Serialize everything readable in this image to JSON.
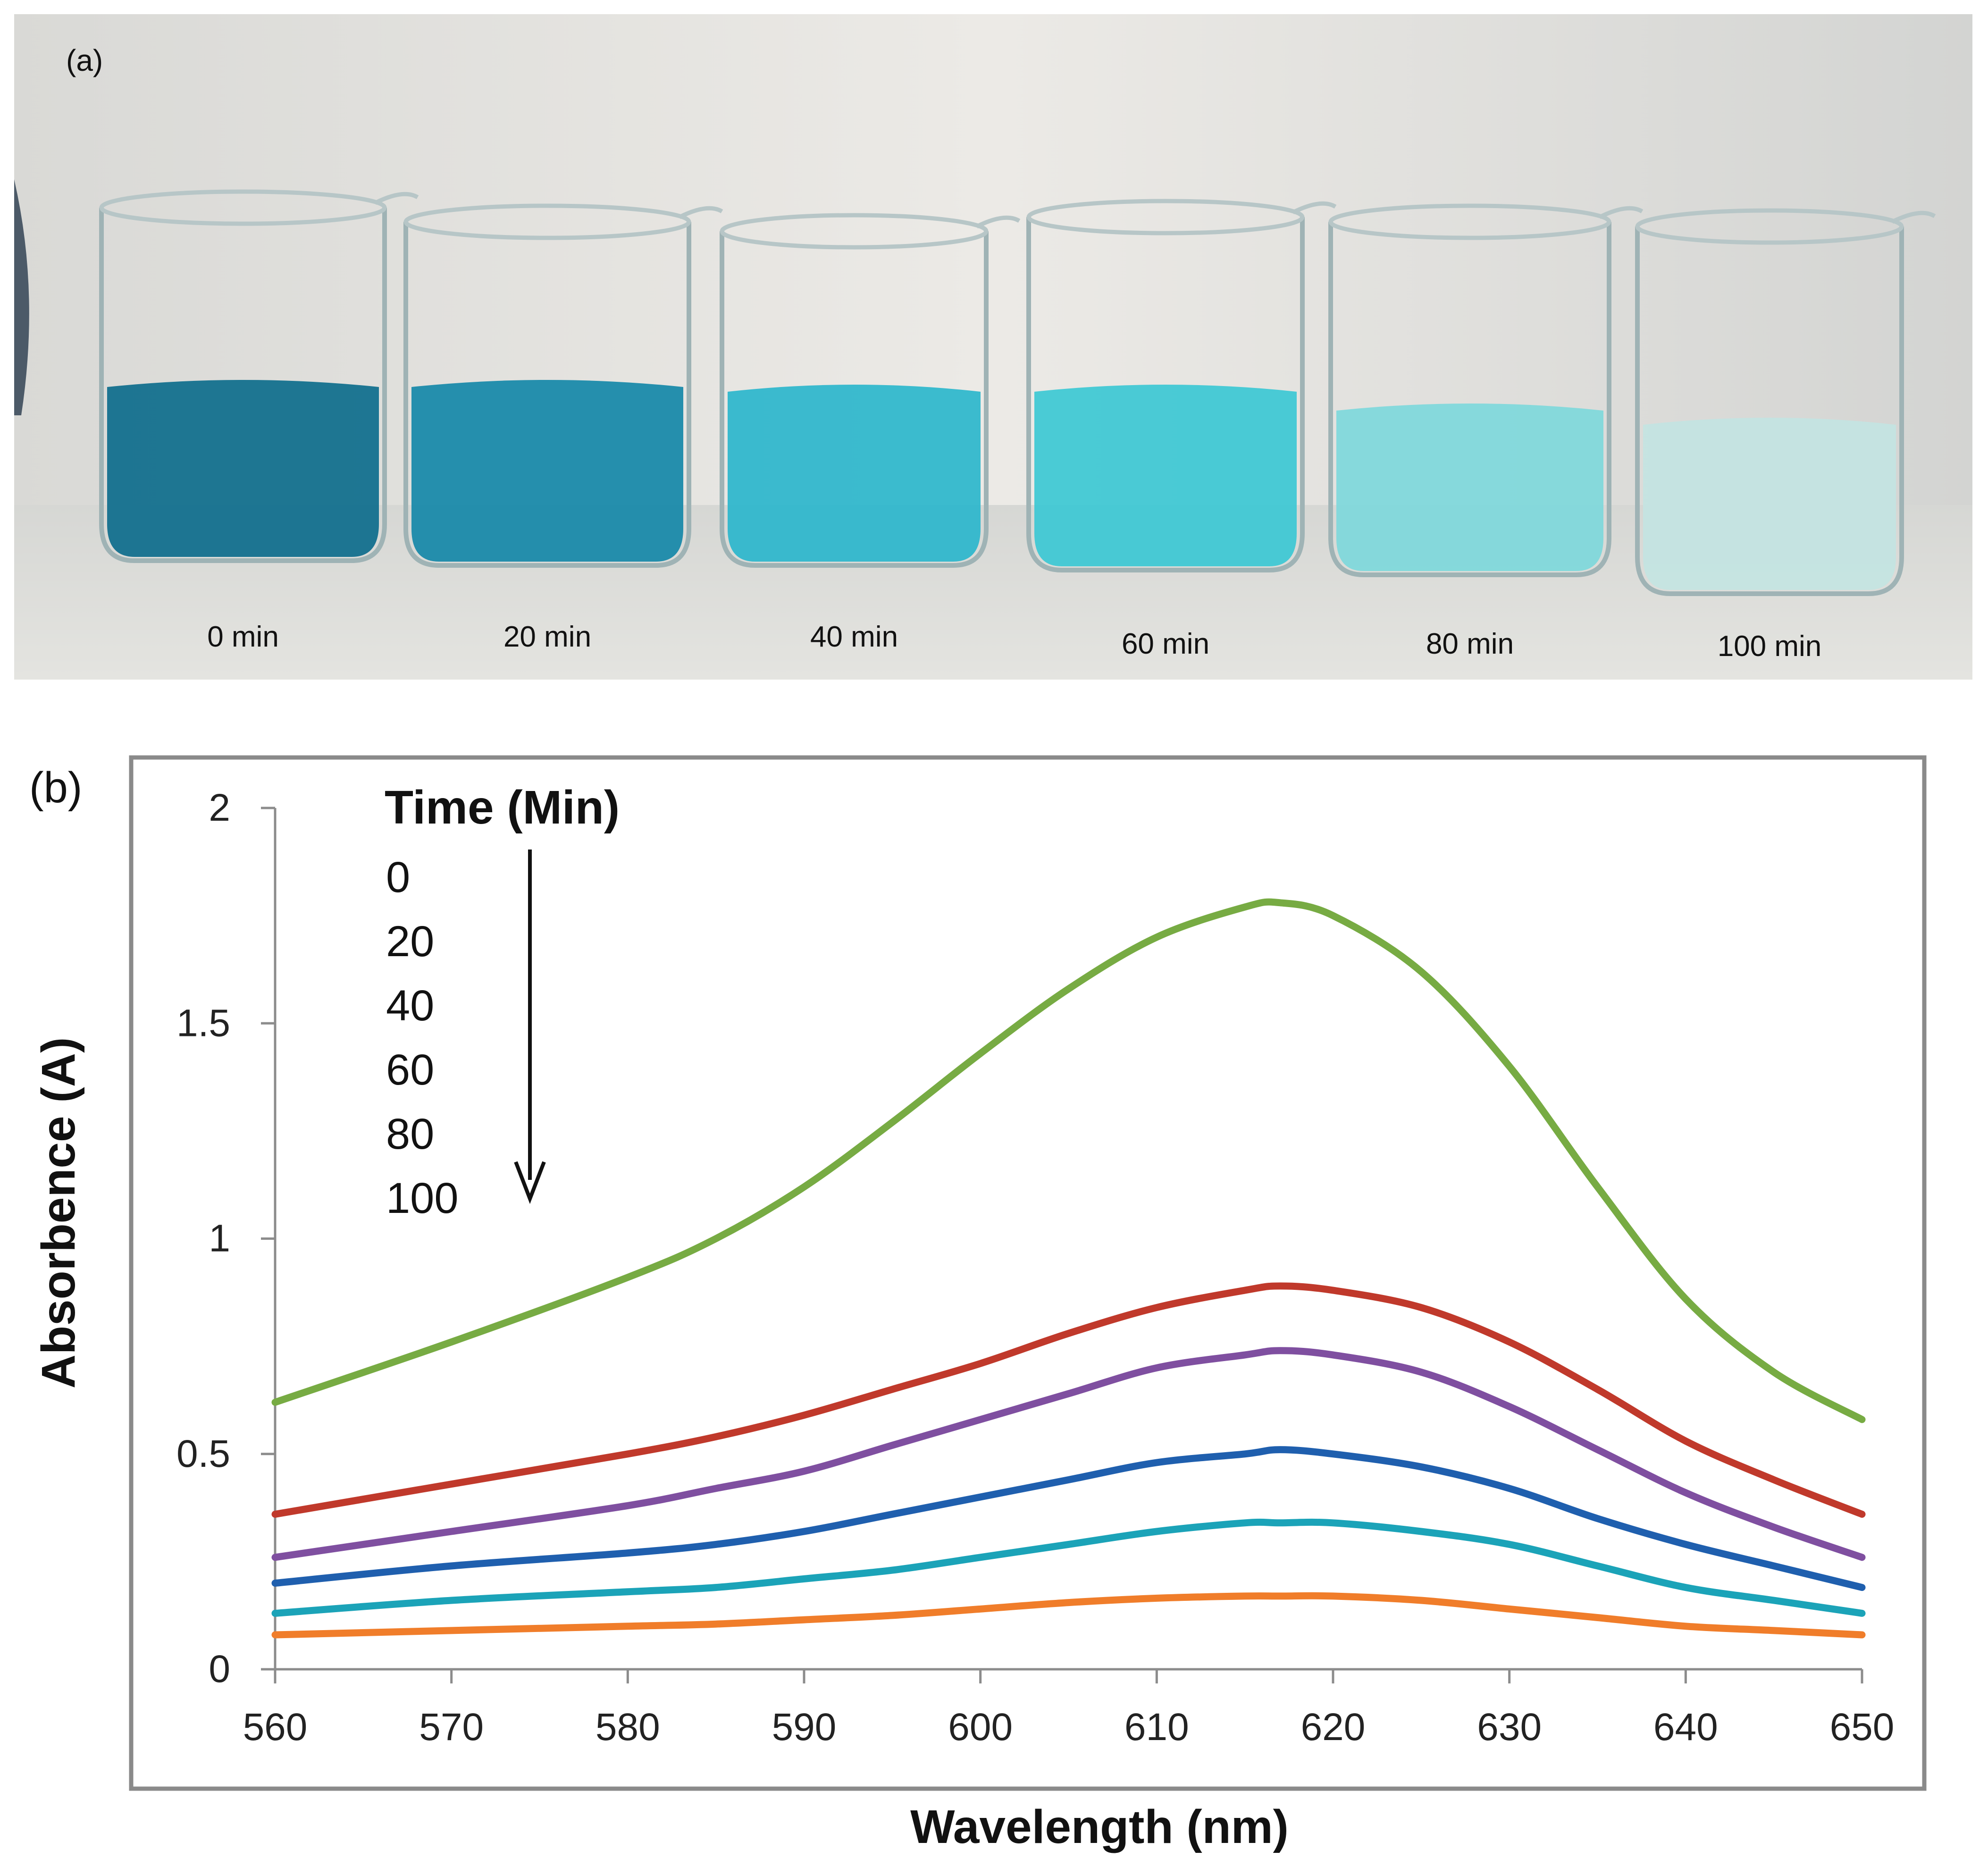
{
  "panel_a": {
    "label": "(a)",
    "beakers": [
      {
        "time_label": "0 min",
        "liquid_color": "#0d6d8c"
      },
      {
        "time_label": "20 min",
        "liquid_color": "#1588a8"
      },
      {
        "time_label": "40 min",
        "liquid_color": "#2bb6cc"
      },
      {
        "time_label": "60 min",
        "liquid_color": "#3cc8d4"
      },
      {
        "time_label": "80 min",
        "liquid_color": "#7ed8db"
      },
      {
        "time_label": "100 min",
        "liquid_color": "#c3e4e2"
      }
    ]
  },
  "panel_b": {
    "label": "(b)",
    "legend_title": "Time (Min)",
    "legend_items": [
      "0",
      "20",
      "40",
      "60",
      "80",
      "100"
    ]
  },
  "chart_data": {
    "type": "line",
    "title": "",
    "xlabel": "Wavelength (nm)",
    "ylabel": "Absorbence (A)",
    "xlim": [
      560,
      650
    ],
    "ylim": [
      0,
      2
    ],
    "xticks": [
      "560",
      "570",
      "580",
      "590",
      "600",
      "610",
      "620",
      "630",
      "640",
      "650"
    ],
    "yticks": [
      "0",
      "0.5",
      "1",
      "1.5",
      "2"
    ],
    "grid": false,
    "x": [
      560,
      570,
      580,
      585,
      590,
      595,
      600,
      605,
      610,
      615,
      617,
      620,
      625,
      630,
      635,
      640,
      645,
      650
    ],
    "series": [
      {
        "name": "0",
        "color": "#77ab43",
        "values": [
          0.62,
          0.76,
          0.91,
          1.0,
          1.12,
          1.27,
          1.43,
          1.58,
          1.7,
          1.77,
          1.78,
          1.75,
          1.62,
          1.4,
          1.12,
          0.86,
          0.69,
          0.58
        ]
      },
      {
        "name": "20",
        "color": "#c0392b",
        "values": [
          0.36,
          0.43,
          0.5,
          0.54,
          0.59,
          0.65,
          0.71,
          0.78,
          0.84,
          0.88,
          0.89,
          0.88,
          0.84,
          0.76,
          0.65,
          0.53,
          0.44,
          0.36
        ]
      },
      {
        "name": "40",
        "color": "#7f4fa0",
        "values": [
          0.26,
          0.32,
          0.38,
          0.42,
          0.46,
          0.52,
          0.58,
          0.64,
          0.7,
          0.73,
          0.74,
          0.73,
          0.69,
          0.61,
          0.51,
          0.41,
          0.33,
          0.26
        ]
      },
      {
        "name": "60",
        "color": "#1f5fae",
        "values": [
          0.2,
          0.24,
          0.27,
          0.29,
          0.32,
          0.36,
          0.4,
          0.44,
          0.48,
          0.5,
          0.51,
          0.5,
          0.47,
          0.42,
          0.35,
          0.29,
          0.24,
          0.19
        ]
      },
      {
        "name": "80",
        "color": "#1ba3b8",
        "values": [
          0.13,
          0.16,
          0.18,
          0.19,
          0.21,
          0.23,
          0.26,
          0.29,
          0.32,
          0.34,
          0.34,
          0.34,
          0.32,
          0.29,
          0.24,
          0.19,
          0.16,
          0.13
        ]
      },
      {
        "name": "100",
        "color": "#f07d2a",
        "values": [
          0.08,
          0.09,
          0.1,
          0.105,
          0.115,
          0.125,
          0.14,
          0.155,
          0.165,
          0.17,
          0.17,
          0.17,
          0.16,
          0.14,
          0.12,
          0.1,
          0.09,
          0.08
        ]
      }
    ]
  }
}
